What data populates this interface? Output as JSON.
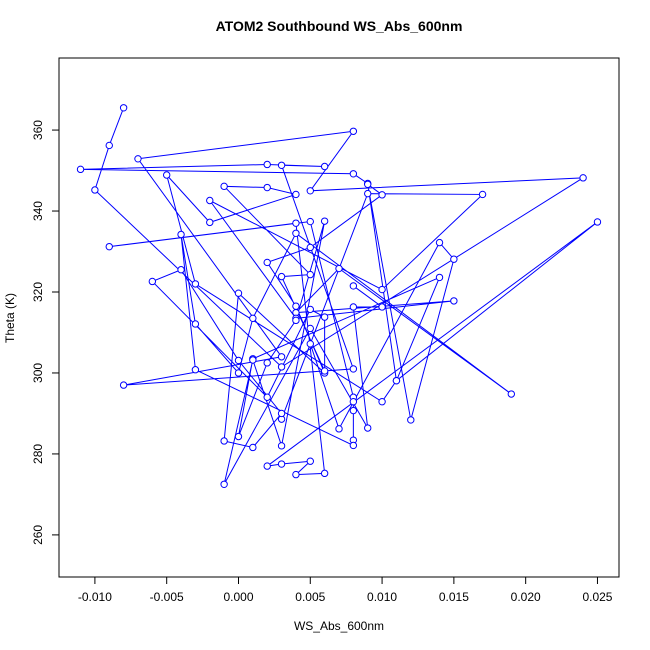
{
  "chart_data": {
    "type": "line",
    "title": "ATOM2 Southbound WS_Abs_600nm",
    "x_label": "WS_Abs_600nm",
    "y_label": "Theta (K)",
    "xlim": [
      -0.0125,
      0.0265
    ],
    "ylim": [
      249.6,
      377.8
    ],
    "xticks": [
      {
        "value": -0.01,
        "label": "-0.010"
      },
      {
        "value": -0.005,
        "label": "-0.005"
      },
      {
        "value": 0,
        "label": "0.000"
      },
      {
        "value": 0.005,
        "label": "0.005"
      },
      {
        "value": 0.01,
        "label": "0.010"
      },
      {
        "value": 0.015,
        "label": "0.015"
      },
      {
        "value": 0.02,
        "label": "0.020"
      },
      {
        "value": 0.025,
        "label": "0.025"
      }
    ],
    "yticks": [
      260,
      280,
      300,
      320,
      340,
      360
    ],
    "marker": "circle",
    "series": [
      {
        "color": "#0000ff",
        "x": [
          -0.008,
          -0.009,
          -0.01,
          0.003,
          0.024,
          0.005,
          0.008,
          -0.007,
          0.003,
          -0.008,
          0.008,
          0.003,
          0.006,
          0.002,
          -0.011,
          0.008,
          0.009,
          0.011,
          0.025,
          0.002,
          0.003,
          0.005,
          0.004,
          0.006,
          0.004,
          -0.009,
          0.005,
          0.008,
          0.008,
          0.008,
          0.008,
          0.008,
          -0.003,
          -0.004,
          -0.003,
          0.0,
          0.001,
          0.004,
          0.019,
          0.007,
          0.004,
          0.015,
          0.004,
          -0.002,
          0.01,
          0.017,
          0.009,
          0.003,
          0.005,
          0.007,
          0.014,
          0.015,
          0.012,
          0.009,
          0.01,
          0.005,
          0.002,
          0.004,
          0.006,
          0.0,
          -0.001,
          0.001,
          0.003,
          0.0,
          -0.004,
          -0.006,
          0.002,
          0.005,
          0.006,
          0.006,
          0.003,
          0.005,
          -0.001,
          0.002,
          0.004,
          -0.002,
          -0.005,
          -0.003,
          0.01,
          0.011,
          0.014,
          0.001,
          0.0,
          0.002,
          0.004,
          0.006,
          0.003,
          0.001,
          -0.001,
          0.005,
          0.009,
          0.008,
          0.01,
          0.008
        ],
        "values": [
          365.5,
          356.2,
          345.2,
          301.5,
          348.2,
          345.0,
          359.7,
          352.9,
          304.0,
          297.0,
          301.0,
          351.3,
          351.0,
          351.5,
          350.3,
          349.2,
          346.8,
          298.1,
          337.3,
          277.0,
          277.5,
          278.2,
          274.9,
          275.2,
          337.0,
          331.2,
          337.4,
          294.0,
          292.9,
          290.7,
          283.4,
          282.1,
          300.8,
          334.2,
          312.1,
          300.0,
          313.5,
          334.5,
          294.8,
          325.8,
          314.9,
          317.8,
          313.5,
          342.6,
          320.6,
          344.1,
          344.3,
          288.6,
          307.2,
          286.2,
          332.2,
          328.1,
          288.4,
          346.6,
          344.0,
          331.0,
          327.3,
          316.5,
          300.0,
          319.7,
          283.2,
          281.6,
          290.0,
          303.1,
          325.5,
          322.6,
          294.0,
          315.7,
          313.8,
          300.5,
          323.8,
          324.3,
          346.1,
          345.8,
          344.1,
          337.2,
          348.9,
          322.0,
          292.9,
          298.1,
          323.6,
          303.5,
          284.3,
          302.5,
          313.0,
          337.5,
          282.0,
          303.2,
          272.5,
          311.0,
          286.4,
          316.3,
          316.3,
          321.5
        ]
      }
    ]
  }
}
